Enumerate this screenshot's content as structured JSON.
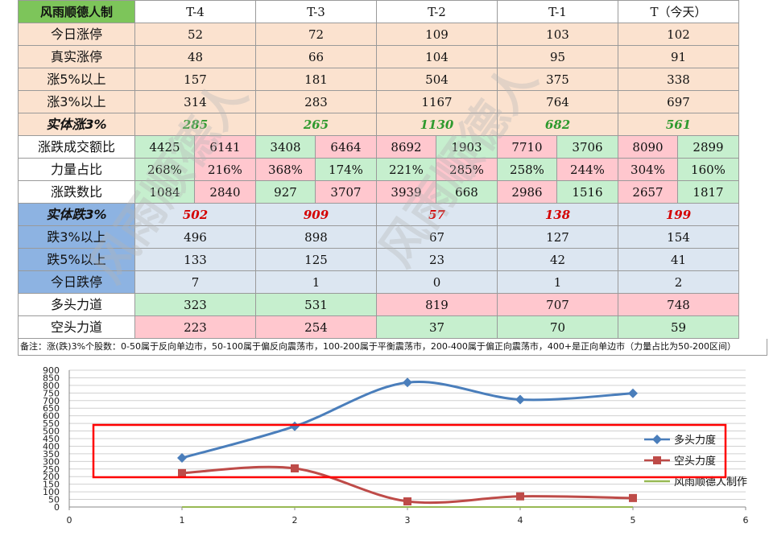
{
  "table": {
    "corner": "风雨顺德人制",
    "headers": [
      "T-4",
      "T-3",
      "T-2",
      "T-1",
      "T（今天）"
    ],
    "rows": {
      "limit_up": {
        "label": "今日涨停",
        "values": [
          "52",
          "72",
          "109",
          "103",
          "102"
        ]
      },
      "real_limit_up": {
        "label": "真实涨停",
        "values": [
          "48",
          "66",
          "104",
          "95",
          "91"
        ]
      },
      "up5": {
        "label": "涨5%以上",
        "values": [
          "157",
          "181",
          "504",
          "375",
          "338"
        ]
      },
      "up3": {
        "label": "涨3%以上",
        "values": [
          "314",
          "283",
          "1167",
          "764",
          "697"
        ]
      },
      "body_up3": {
        "label": "实体涨3%",
        "values": [
          "285",
          "265",
          "1130",
          "682",
          "561"
        ]
      },
      "amount_ratio": {
        "label": "涨跌成交额比",
        "pairs": [
          [
            "4425",
            "6141"
          ],
          [
            "3408",
            "6464"
          ],
          [
            "8692",
            "1903"
          ],
          [
            "7710",
            "3706"
          ],
          [
            "8090",
            "2899"
          ]
        ]
      },
      "strength_ratio": {
        "label": "力量占比",
        "pairs": [
          [
            "268%",
            "216%"
          ],
          [
            "368%",
            "174%"
          ],
          [
            "221%",
            "285%"
          ],
          [
            "258%",
            "244%"
          ],
          [
            "304%",
            "160%"
          ]
        ]
      },
      "count_ratio": {
        "label": "涨跌数比",
        "pairs": [
          [
            "1084",
            "2840"
          ],
          [
            "927",
            "3707"
          ],
          [
            "3939",
            "668"
          ],
          [
            "2986",
            "1516"
          ],
          [
            "2657",
            "1817"
          ]
        ]
      },
      "body_down3": {
        "label": "实体跌3%",
        "values": [
          "502",
          "909",
          "57",
          "138",
          "199"
        ]
      },
      "down3": {
        "label": "跌3%以上",
        "values": [
          "496",
          "898",
          "67",
          "127",
          "154"
        ]
      },
      "down5": {
        "label": "跌5%以上",
        "values": [
          "133",
          "125",
          "23",
          "42",
          "41"
        ]
      },
      "limit_down": {
        "label": "今日跌停",
        "values": [
          "7",
          "1",
          "0",
          "1",
          "2"
        ]
      },
      "bull": {
        "label": "多头力道",
        "values": [
          "323",
          "531",
          "819",
          "707",
          "748"
        ]
      },
      "bear": {
        "label": "空头力道",
        "values": [
          "223",
          "254",
          "37",
          "70",
          "59"
        ]
      }
    }
  },
  "note": "备注：涨(跌)3%个股数：0-50属于反向单边市，50-100属于偏反向震荡市，100-200属于平衡震荡市，200-400属于偏正向震荡市，400+是正向单边市（力量占比为50-200区间）",
  "watermark": "风雨顺德人",
  "colors": {
    "bull": "#4a7ebb",
    "bear": "#be4b48",
    "author": "#98b954",
    "highlight_box": "#ff0000"
  },
  "chart_data": {
    "type": "line",
    "x": [
      1,
      2,
      3,
      4,
      5
    ],
    "series": [
      {
        "name": "多头力度",
        "values": [
          323,
          531,
          819,
          707,
          748
        ],
        "marker": "diamond"
      },
      {
        "name": "空头力度",
        "values": [
          223,
          254,
          37,
          70,
          59
        ],
        "marker": "square"
      },
      {
        "name": "风雨顺德人制作",
        "values": [
          0,
          0,
          0,
          0,
          0
        ],
        "marker": "none"
      }
    ],
    "xlim": [
      0,
      6
    ],
    "ylim": [
      0,
      900
    ],
    "xticks": [
      "0",
      "1",
      "2",
      "3",
      "4",
      "5",
      "6"
    ],
    "yticks": [
      "0",
      "50",
      "100",
      "150",
      "200",
      "250",
      "300",
      "350",
      "400",
      "450",
      "500",
      "550",
      "600",
      "650",
      "700",
      "750",
      "800",
      "850",
      "900"
    ],
    "grid": true,
    "legend": "right"
  }
}
